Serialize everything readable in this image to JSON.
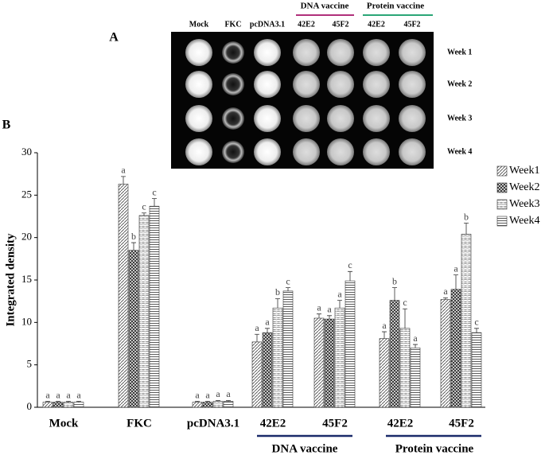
{
  "panel_a": {
    "label": "A",
    "column_labels": [
      "Mock",
      "FKC",
      "pcDNA3.1",
      "42E2",
      "45F2",
      "42E2",
      "45F2"
    ],
    "groups": [
      "DNA vaccine",
      "Protein vaccine"
    ],
    "row_labels": [
      "Week 1",
      "Week 2",
      "Week 3",
      "Week 4"
    ]
  },
  "chart_data": {
    "type": "bar",
    "panel_label": "B",
    "ylabel": "Integrated density",
    "categories": [
      "Mock",
      "FKC",
      "pcDNA3.1",
      "42E2",
      "45F2",
      "42E2",
      "45F2"
    ],
    "category_groups": [
      "DNA vaccine",
      "Protein vaccine"
    ],
    "ylim": [
      0,
      30
    ],
    "yticks": [
      0,
      5,
      10,
      15,
      20,
      25,
      30
    ],
    "legend": "right",
    "color": "#000000",
    "series": [
      {
        "name": "Week1",
        "values": [
          0.6,
          26.3,
          0.6,
          7.7,
          10.5,
          8.1,
          12.7
        ],
        "errors": [
          0.1,
          0.9,
          0.1,
          0.9,
          0.5,
          0.8,
          0.2
        ],
        "letters": [
          "a",
          "a",
          "a",
          "a",
          "a",
          "a",
          "a"
        ]
      },
      {
        "name": "Week2",
        "values": [
          0.6,
          18.5,
          0.6,
          8.8,
          10.4,
          12.6,
          13.9
        ],
        "errors": [
          0.1,
          0.9,
          0.1,
          0.5,
          0.4,
          1.5,
          1.7
        ],
        "letters": [
          "a",
          "b",
          "a",
          "a",
          "a",
          "b",
          "a"
        ]
      },
      {
        "name": "Week3",
        "values": [
          0.6,
          22.6,
          0.7,
          11.7,
          11.7,
          9.3,
          20.4
        ],
        "errors": [
          0.1,
          0.3,
          0.1,
          1.1,
          0.9,
          2.3,
          1.3
        ],
        "letters": [
          "a",
          "c",
          "a",
          "b",
          "a",
          "c",
          "b"
        ]
      },
      {
        "name": "Week4",
        "values": [
          0.6,
          23.7,
          0.7,
          13.7,
          14.9,
          7.0,
          8.8
        ],
        "errors": [
          0.1,
          0.9,
          0.1,
          0.4,
          1.1,
          0.4,
          0.5
        ],
        "letters": [
          "a",
          "c",
          "a",
          "c",
          "c",
          "a",
          "c"
        ]
      }
    ]
  }
}
